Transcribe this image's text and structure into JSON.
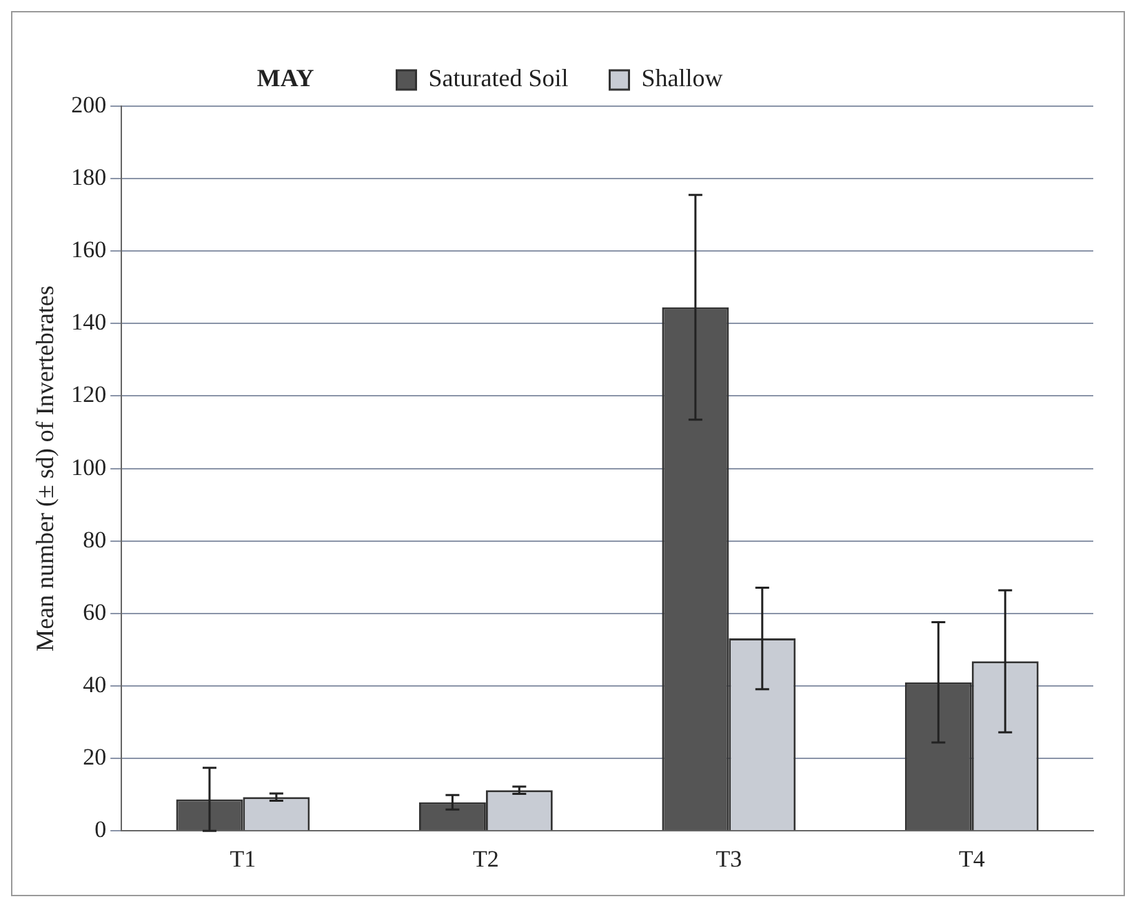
{
  "chart_data": {
    "type": "bar",
    "title": "MAY",
    "ylabel": "Mean number (± sd) of Invertebrates",
    "categories": [
      "T1",
      "T2",
      "T3",
      "T4"
    ],
    "series": [
      {
        "name": "Saturated Soil",
        "color": "#555555",
        "values": [
          8.7,
          7.9,
          144.5,
          41
        ],
        "errors": [
          8.7,
          2,
          31,
          16.6
        ]
      },
      {
        "name": "Shallow",
        "color": "#c8ccd4",
        "values": [
          9.3,
          11.2,
          53.1,
          46.8
        ],
        "errors": [
          1,
          1,
          14,
          19.6
        ]
      }
    ],
    "ylim": [
      0,
      200
    ],
    "yticks": [
      0,
      20,
      40,
      60,
      80,
      100,
      120,
      140,
      160,
      180,
      200
    ],
    "grid": "y",
    "legend": "top"
  }
}
